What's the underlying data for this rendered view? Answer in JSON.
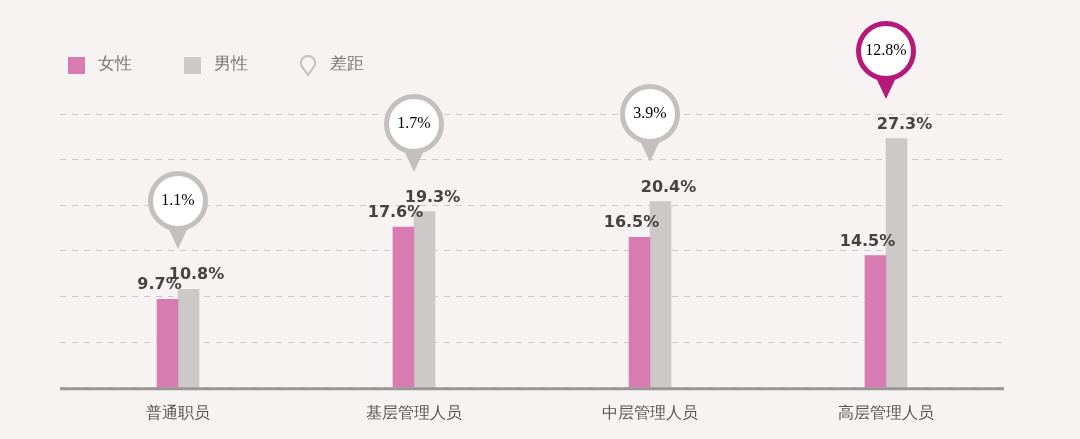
{
  "chart_data": {
    "type": "bar",
    "categories": [
      "普通职员",
      "基层管理人员",
      "中层管理人员",
      "高层管理人员"
    ],
    "series": [
      {
        "name": "女性",
        "color": "#d77bb0",
        "values": [
          9.7,
          17.6,
          16.5,
          14.5
        ],
        "value_labels": [
          "9.7%",
          "17.6%",
          "16.5%",
          "14.5%"
        ]
      },
      {
        "name": "男性",
        "color": "#cdc9c9",
        "values": [
          10.8,
          19.3,
          20.4,
          27.3
        ],
        "value_labels": [
          "10.8%",
          "19.3%",
          "20.4%",
          "27.3%"
        ]
      },
      {
        "name": "差距",
        "type": "scatter",
        "colors": [
          "#c4c0c0",
          "#c4c0c0",
          "#c4c0c0",
          "#b5197a"
        ],
        "values": [
          null,
          null,
          null,
          null
        ]
      }
    ],
    "annotations": [
      "1.1%",
      "1.7%",
      "3.9%",
      "12.8%"
    ],
    "grid": "y",
    "legend": "top left",
    "tick_labels": "x"
  }
}
